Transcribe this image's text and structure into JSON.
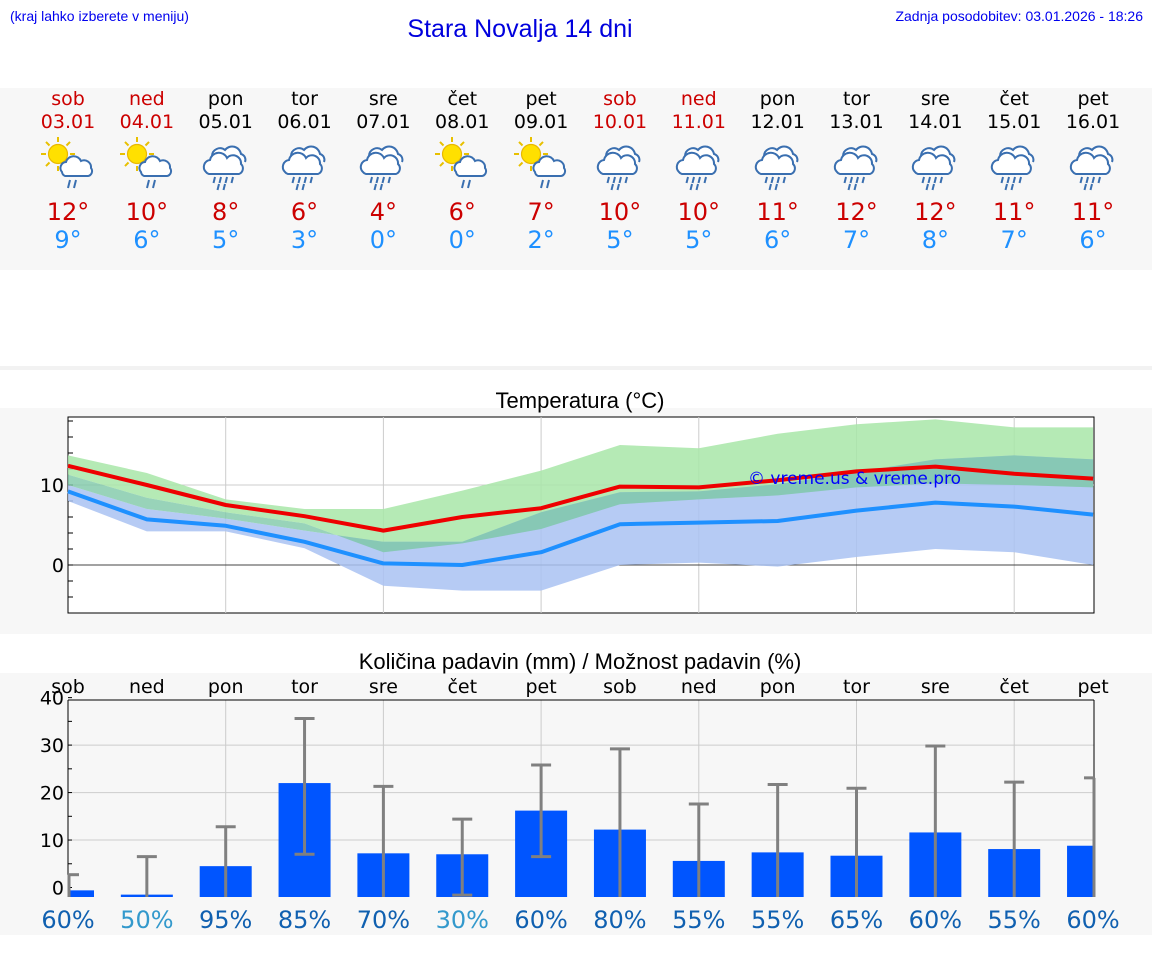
{
  "header": {
    "menu_hint": "(kraj lahko izberete v meniju)",
    "title": "Stara Novalja 14 dni",
    "last_update": "Zadnja posodobitev: 03.01.2026 - 18:26"
  },
  "days": [
    {
      "name": "sob",
      "date": "03.01",
      "max": "12°",
      "min": "9°",
      "icon": "sun-cloud-rain-icon",
      "weekend": true
    },
    {
      "name": "ned",
      "date": "04.01",
      "max": "10°",
      "min": "6°",
      "icon": "sun-cloud-rain-icon",
      "weekend": true
    },
    {
      "name": "pon",
      "date": "05.01",
      "max": "8°",
      "min": "5°",
      "icon": "cloud-rain-icon",
      "weekend": false
    },
    {
      "name": "tor",
      "date": "06.01",
      "max": "6°",
      "min": "3°",
      "icon": "cloud-rain-icon",
      "weekend": false
    },
    {
      "name": "sre",
      "date": "07.01",
      "max": "4°",
      "min": "0°",
      "icon": "cloud-rain-icon",
      "weekend": false
    },
    {
      "name": "čet",
      "date": "08.01",
      "max": "6°",
      "min": "0°",
      "icon": "sun-cloud-rain-icon",
      "weekend": false
    },
    {
      "name": "pet",
      "date": "09.01",
      "max": "7°",
      "min": "2°",
      "icon": "sun-cloud-rain-icon",
      "weekend": false
    },
    {
      "name": "sob",
      "date": "10.01",
      "max": "10°",
      "min": "5°",
      "icon": "cloud-rain-icon",
      "weekend": true
    },
    {
      "name": "ned",
      "date": "11.01",
      "max": "10°",
      "min": "5°",
      "icon": "cloud-rain-icon",
      "weekend": true
    },
    {
      "name": "pon",
      "date": "12.01",
      "max": "11°",
      "min": "6°",
      "icon": "cloud-rain-icon",
      "weekend": false
    },
    {
      "name": "tor",
      "date": "13.01",
      "max": "12°",
      "min": "7°",
      "icon": "cloud-rain-icon",
      "weekend": false
    },
    {
      "name": "sre",
      "date": "14.01",
      "max": "12°",
      "min": "8°",
      "icon": "cloud-rain-icon",
      "weekend": false
    },
    {
      "name": "čet",
      "date": "15.01",
      "max": "11°",
      "min": "7°",
      "icon": "cloud-rain-icon",
      "weekend": false
    },
    {
      "name": "pet",
      "date": "16.01",
      "max": "11°",
      "min": "6°",
      "icon": "cloud-rain-icon",
      "weekend": false
    }
  ],
  "colors": {
    "max": "#ee0000",
    "min": "#1e90ff",
    "max_band": "#a8e6a8",
    "min_band": "#a9c2f2",
    "bar": "#0055ff",
    "whisker": "#808080",
    "prob_high": "#1060b0",
    "prob_low": "#3399cc"
  },
  "chart_data": [
    {
      "type": "line",
      "title": "Temperatura (°C)",
      "watermark": "© vreme.us & vreme.pro",
      "x": [
        0,
        1,
        2,
        3,
        4,
        5,
        6,
        7,
        8,
        9,
        10,
        11,
        12,
        13
      ],
      "yticks": [
        "10",
        "0"
      ],
      "ylim": [
        -6,
        18.5
      ],
      "series": [
        {
          "name": "max",
          "values": [
            12.4,
            10,
            7.5,
            6.1,
            4.3,
            6,
            7.1,
            9.8,
            9.7,
            10.6,
            11.7,
            12.3,
            11.4,
            10.8
          ]
        },
        {
          "name": "min",
          "values": [
            9.2,
            5.7,
            4.9,
            2.9,
            0.2,
            0,
            1.6,
            5.1,
            5.3,
            5.5,
            6.8,
            7.8,
            7.3,
            6.3
          ]
        }
      ],
      "max_band": {
        "upper": [
          13.7,
          11.5,
          8.2,
          7,
          7,
          9.3,
          11.8,
          15,
          14.6,
          16.4,
          17.6,
          18.2,
          17.2,
          17.2
        ],
        "lower": [
          11.3,
          8.4,
          6.6,
          5.2,
          1.6,
          2.7,
          4.5,
          7.6,
          8.2,
          8.7,
          9.7,
          10.2,
          10,
          9.7
        ]
      },
      "min_band": {
        "upper": [
          10,
          7,
          5.8,
          4.3,
          2.9,
          2.9,
          6.6,
          9.1,
          9.2,
          10.1,
          11.6,
          13.2,
          13.7,
          13.2
        ],
        "lower": [
          8,
          4.2,
          4.2,
          2.1,
          -2.6,
          -3.2,
          -3.2,
          0,
          0.3,
          -0.2,
          1,
          2,
          1.6,
          0
        ]
      }
    },
    {
      "type": "bar",
      "title": "Količina padavin (mm) / Možnost padavin (%)",
      "categories": [
        "sob",
        "ned",
        "pon",
        "tor",
        "sre",
        "čet",
        "pet",
        "sob",
        "ned",
        "pon",
        "tor",
        "sre",
        "čet",
        "pet"
      ],
      "yticks": [
        "40",
        "30",
        "20",
        "10",
        "0"
      ],
      "ylim": [
        -2,
        39.5
      ],
      "values": [
        -0.6,
        -1.5,
        4.5,
        22,
        7.2,
        7,
        16.2,
        12.2,
        5.6,
        7.4,
        6.7,
        11.6,
        8.1,
        8.8
      ],
      "error_low": [
        null,
        null,
        null,
        7,
        null,
        -1.6,
        6.5,
        null,
        null,
        null,
        null,
        null,
        null,
        null
      ],
      "error_high": [
        2.7,
        6.5,
        12.8,
        35.6,
        21.3,
        14.4,
        25.8,
        29.2,
        17.6,
        21.7,
        20.9,
        29.8,
        22.2,
        23.1
      ],
      "probabilities": [
        "60%",
        "50%",
        "95%",
        "85%",
        "70%",
        "30%",
        "60%",
        "80%",
        "55%",
        "55%",
        "65%",
        "60%",
        "55%",
        "60%"
      ],
      "prob_low": [
        false,
        true,
        false,
        false,
        false,
        true,
        false,
        false,
        false,
        false,
        false,
        false,
        false,
        false
      ]
    }
  ]
}
